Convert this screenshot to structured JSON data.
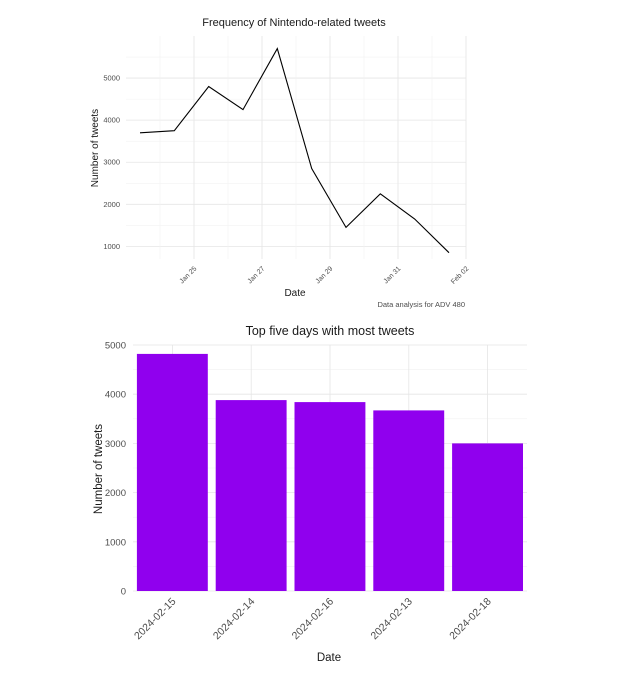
{
  "chart_data": [
    {
      "type": "line",
      "title": "Frequency of Nintendo-related tweets",
      "xlabel": "Date",
      "ylabel": "Number of tweets",
      "caption": "Data analysis for ADV 480",
      "x": [
        "2024-01-24",
        "2024-01-25",
        "2024-01-26",
        "2024-01-27",
        "2024-01-28",
        "2024-01-29",
        "2024-01-30",
        "2024-01-31",
        "2024-02-01",
        "2024-02-02"
      ],
      "x_tick_labels": [
        "Jan 25",
        "Jan 27",
        "Jan 29",
        "Jan 31",
        "Feb 02"
      ],
      "x_tick_dates": [
        "2024-01-25",
        "2024-01-27",
        "2024-01-29",
        "2024-01-31",
        "2024-02-02"
      ],
      "y_ticks": [
        1000,
        2000,
        3000,
        4000,
        5000
      ],
      "y": [
        3700,
        3750,
        4800,
        4250,
        5700,
        2850,
        1450,
        2250,
        1650,
        850
      ],
      "ylim": [
        700,
        6000
      ],
      "grid": true,
      "line_color": "#000000"
    },
    {
      "type": "bar",
      "title": "Top five days with most tweets",
      "xlabel": "Date",
      "ylabel": "Number of tweets",
      "categories": [
        "2024-02-15",
        "2024-02-14",
        "2024-02-16",
        "2024-02-13",
        "2024-02-18"
      ],
      "values": [
        4820,
        3880,
        3840,
        3670,
        3000
      ],
      "y_ticks": [
        0,
        1000,
        2000,
        3000,
        4000,
        5000
      ],
      "ylim": [
        0,
        5000
      ],
      "grid": true,
      "bar_color": "#9000ee"
    }
  ]
}
